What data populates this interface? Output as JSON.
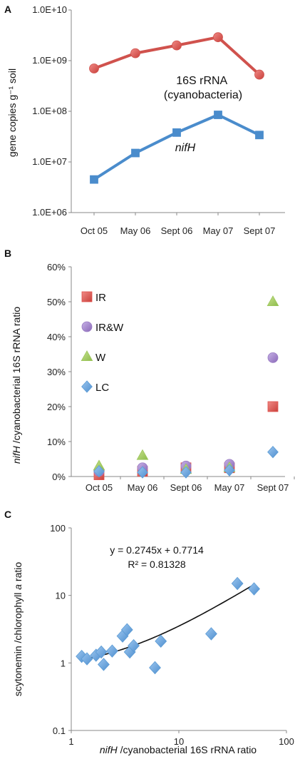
{
  "chart_data": [
    {
      "panel": "A",
      "type": "line",
      "ylabel": "gene copies g⁻¹ soil",
      "categories": [
        "Oct 05",
        "May 06",
        "Sept 06",
        "May 07",
        "Sept 07"
      ],
      "y_scale": "log",
      "ylim": [
        1000000,
        10000000000
      ],
      "yticks": [
        "1.0E+06",
        "1.0E+07",
        "1.0E+08",
        "1.0E+09",
        "1.0E+10"
      ],
      "series": [
        {
          "name": "16S rRNA (cyanobacteria)",
          "label_lines": [
            "16S rRNA",
            "(cyanobacteria)"
          ],
          "color": "#d0524d",
          "marker": "circle",
          "x": [
            0,
            1,
            2,
            3,
            4
          ],
          "values": [
            700000000,
            1400000000,
            2000000000,
            2900000000,
            530000000
          ]
        },
        {
          "name": "nifH",
          "label_lines": [
            "nifH"
          ],
          "color": "#4a8ccc",
          "marker": "square",
          "x": [
            0,
            1,
            2,
            3,
            4
          ],
          "values": [
            4500000,
            15000000,
            38000000,
            85000000,
            34000000
          ]
        }
      ]
    },
    {
      "panel": "B",
      "type": "scatter",
      "ylabel": "nifH /cyanobacterial 16S rRNA ratio",
      "categories": [
        "Oct 05",
        "May 06",
        "Sept 06",
        "May 07",
        "Sept 07"
      ],
      "ylim": [
        0,
        60
      ],
      "yticks": [
        "0%",
        "10%",
        "20%",
        "30%",
        "40%",
        "50%",
        "60%"
      ],
      "grid": false,
      "legend_position": "top-left",
      "series": [
        {
          "name": "IR",
          "color": "#e0504c",
          "marker": "square",
          "values": [
            0.5,
            1.5,
            2.5,
            2.5,
            20
          ]
        },
        {
          "name": "IR&W",
          "color": "#9a7cc4",
          "marker": "circle",
          "values": [
            1.5,
            2.5,
            3.0,
            3.5,
            34
          ]
        },
        {
          "name": "W",
          "color": "#9cc65a",
          "marker": "triangle",
          "values": [
            3.0,
            6.0,
            2.0,
            2.5,
            50
          ]
        },
        {
          "name": "LC",
          "color": "#5b9bd5",
          "marker": "diamond",
          "values": [
            1.5,
            1.2,
            1.2,
            1.8,
            7
          ]
        }
      ]
    },
    {
      "panel": "C",
      "type": "scatter",
      "xlabel": "nifH /cyanobacterial 16S rRNA ratio",
      "ylabel": "scytonemin /chlorophyll a ratio",
      "x_scale": "log",
      "y_scale": "log",
      "xlim": [
        1,
        100
      ],
      "ylim": [
        0.1,
        100
      ],
      "xticks": [
        "1",
        "10",
        "100"
      ],
      "yticks": [
        "0.1",
        "1",
        "10",
        "100"
      ],
      "equation": "y = 0.2745x + 0.7714",
      "r2": "R² = 0.81328",
      "trendline": {
        "slope": 0.2745,
        "intercept": 0.7714,
        "x_range": [
          1.3,
          50
        ]
      },
      "series": [
        {
          "color": "#5b9bd5",
          "marker": "diamond",
          "points": [
            [
              1.25,
              1.25
            ],
            [
              1.4,
              1.15
            ],
            [
              1.7,
              1.3
            ],
            [
              1.9,
              1.45
            ],
            [
              2.0,
              0.95
            ],
            [
              2.4,
              1.5
            ],
            [
              3.0,
              2.5
            ],
            [
              3.3,
              3.1
            ],
            [
              3.5,
              1.45
            ],
            [
              3.8,
              1.8
            ],
            [
              6.0,
              0.85
            ],
            [
              6.8,
              2.1
            ],
            [
              20,
              2.7
            ],
            [
              35,
              15.0
            ],
            [
              50,
              12.5
            ]
          ]
        }
      ]
    }
  ]
}
